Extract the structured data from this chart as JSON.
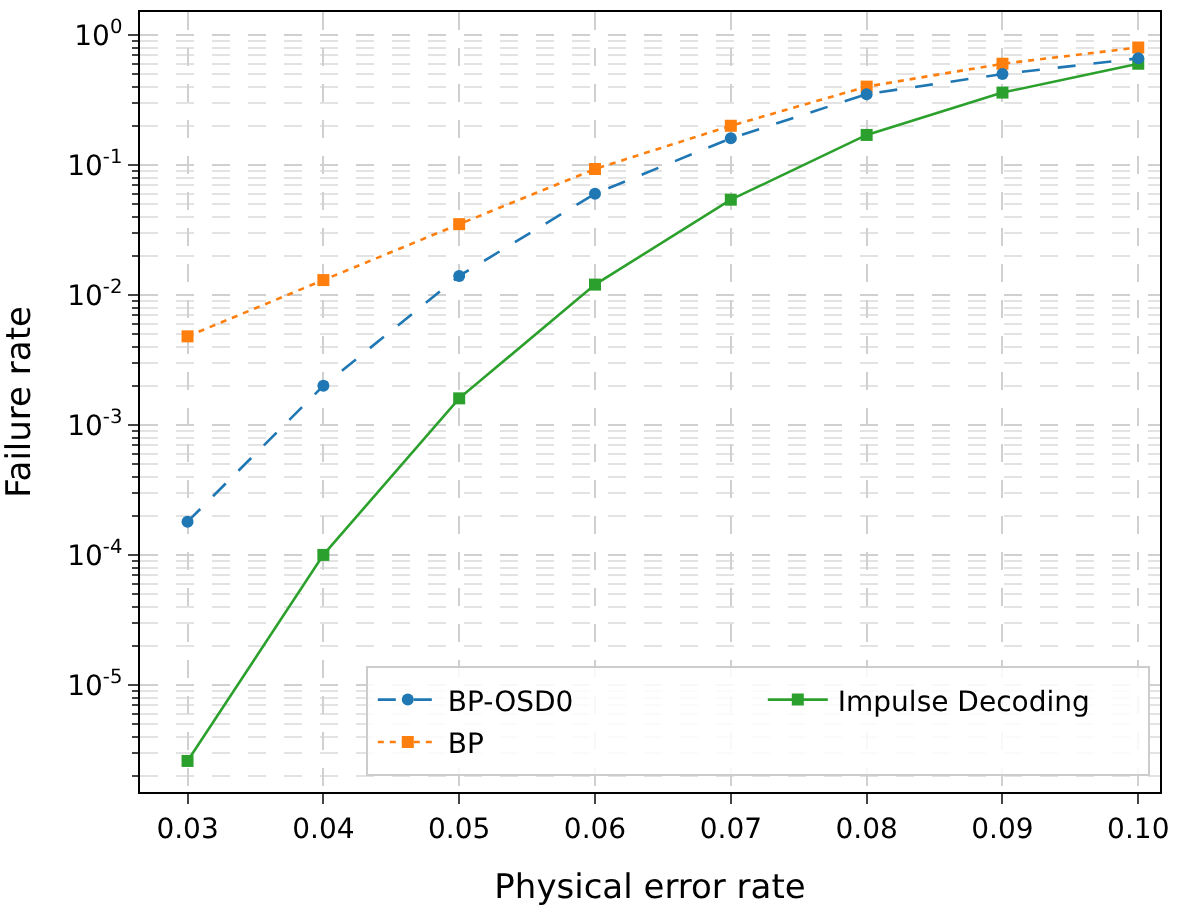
{
  "chart_data": {
    "type": "line",
    "xlabel": "Physical error rate",
    "ylabel": "Failure rate",
    "x": [
      0.03,
      0.04,
      0.05,
      0.06,
      0.07,
      0.08,
      0.09,
      0.1
    ],
    "series": [
      {
        "name": "BP-OSD0",
        "color": "#1f77b4",
        "marker": "circle",
        "line_style": "dashed",
        "values": [
          0.00018,
          0.002,
          0.014,
          0.06,
          0.16,
          0.35,
          0.5,
          0.66
        ]
      },
      {
        "name": "BP",
        "color": "#ff7f0e",
        "marker": "square",
        "line_style": "dotted",
        "values": [
          0.0048,
          0.013,
          0.035,
          0.093,
          0.2,
          0.4,
          0.6,
          0.8
        ]
      },
      {
        "name": "Impulse Decoding",
        "color": "#2ca02c",
        "marker": "square",
        "line_style": "solid",
        "values": [
          2.6e-06,
          0.0001,
          0.0016,
          0.012,
          0.054,
          0.17,
          0.36,
          0.6
        ]
      }
    ],
    "log": "y",
    "grid": true,
    "legend": "bottom right",
    "xlim": [
      0.0265,
      0.1016
    ],
    "xticks": [
      {
        "value": 0.03,
        "label": "0.03"
      },
      {
        "value": 0.04,
        "label": "0.04"
      },
      {
        "value": 0.05,
        "label": "0.05"
      },
      {
        "value": 0.06,
        "label": "0.06"
      },
      {
        "value": 0.07,
        "label": "0.07"
      },
      {
        "value": 0.08,
        "label": "0.08"
      },
      {
        "value": 0.09,
        "label": "0.09"
      },
      {
        "value": 0.1,
        "label": "0.10"
      }
    ],
    "ylim": [
      1.5e-06,
      1.5
    ],
    "yticks": [
      {
        "value": 1e-05,
        "label": "10$^{-5}$"
      },
      {
        "value": 0.0001,
        "label": "10$^{-4}$"
      },
      {
        "value": 0.001,
        "label": "10$^{-3}$"
      },
      {
        "value": 0.01,
        "label": "10$^{-2}$"
      },
      {
        "value": 0.1,
        "label": "10$^{-1}$"
      },
      {
        "value": 1,
        "label": "10$^{0}$"
      }
    ]
  }
}
